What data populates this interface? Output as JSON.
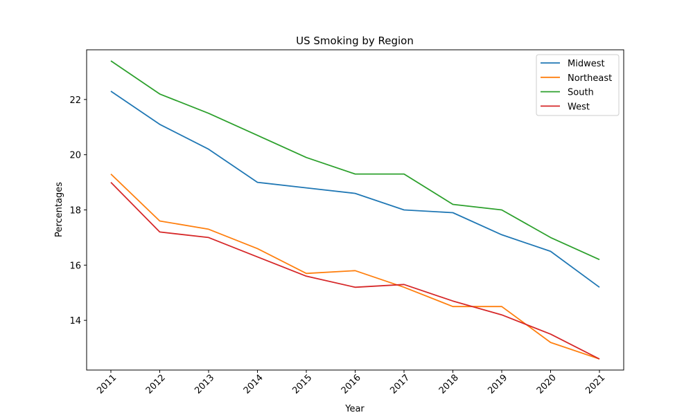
{
  "chart_data": {
    "type": "line",
    "title": "US Smoking by Region",
    "xlabel": "Year",
    "ylabel": "Percentages",
    "categories": [
      "2011",
      "2012",
      "2013",
      "2014",
      "2015",
      "2016",
      "2017",
      "2018",
      "2019",
      "2020",
      "2021"
    ],
    "ylim": [
      12.2,
      23.8
    ],
    "yticks": [
      14,
      16,
      18,
      20,
      22
    ],
    "grid": false,
    "legend_position": "top-right",
    "series": [
      {
        "name": "Midwest",
        "color": "#1f77b4",
        "values": [
          22.3,
          21.1,
          20.2,
          19.0,
          18.8,
          18.6,
          18.0,
          17.9,
          17.1,
          16.5,
          15.2
        ]
      },
      {
        "name": "Northeast",
        "color": "#ff7f0e",
        "values": [
          19.3,
          17.6,
          17.3,
          16.6,
          15.7,
          15.8,
          15.2,
          14.5,
          14.5,
          13.2,
          12.6
        ]
      },
      {
        "name": "South",
        "color": "#2ca02c",
        "values": [
          23.4,
          22.2,
          21.5,
          20.7,
          19.9,
          19.3,
          19.3,
          18.2,
          18.0,
          17.0,
          16.2
        ]
      },
      {
        "name": "West",
        "color": "#d62728",
        "values": [
          19.0,
          17.2,
          17.0,
          16.3,
          15.6,
          15.2,
          15.3,
          14.7,
          14.2,
          13.5,
          12.6
        ]
      }
    ]
  }
}
